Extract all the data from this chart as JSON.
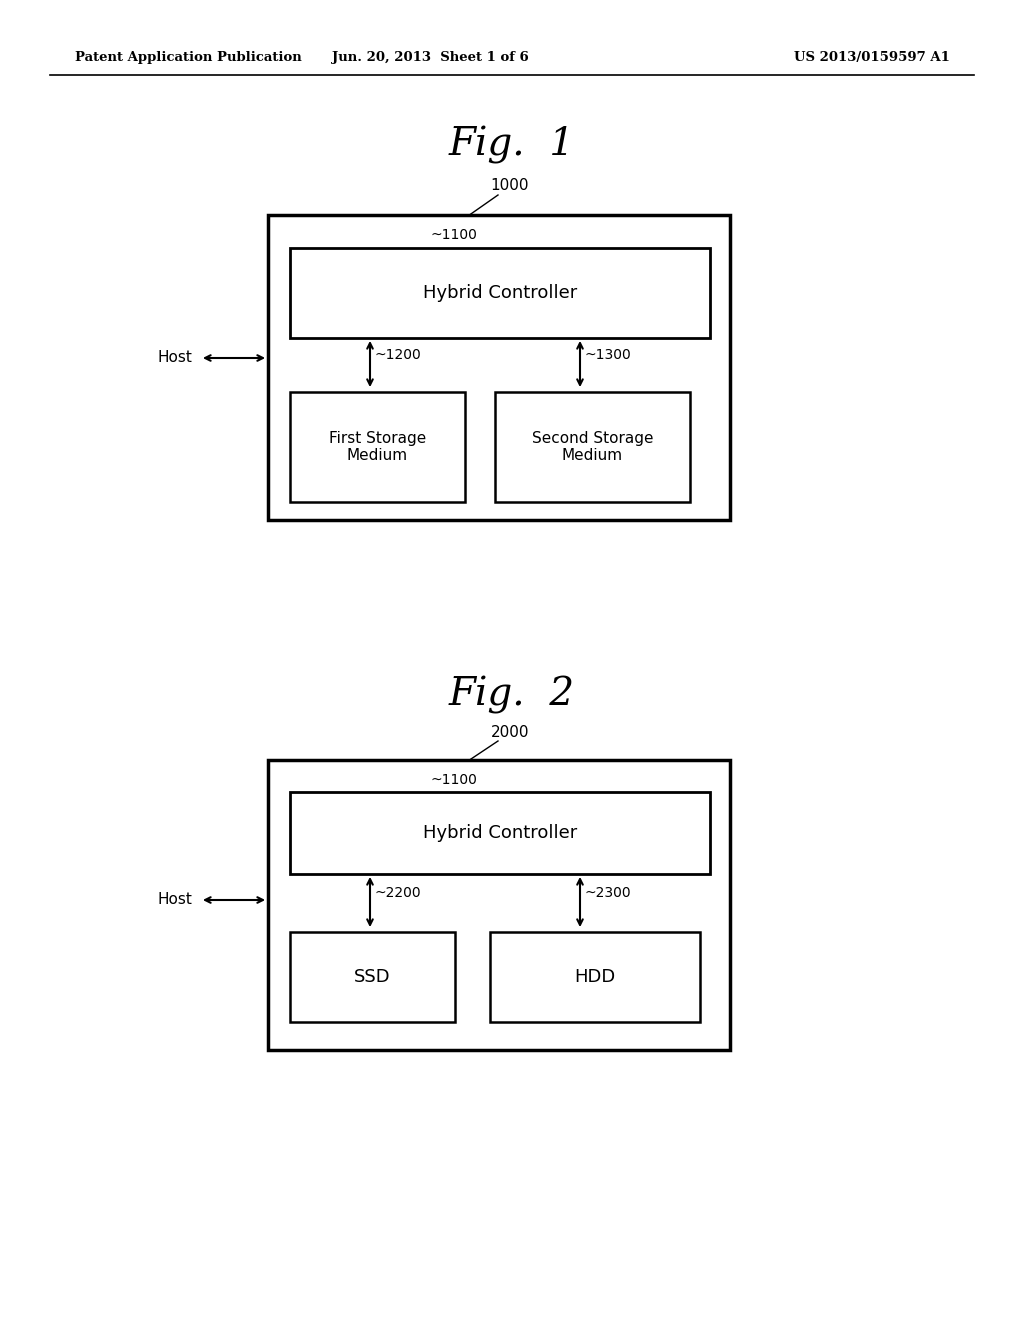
{
  "bg_color": "#ffffff",
  "header_left": "Patent Application Publication",
  "header_mid": "Jun. 20, 2013  Sheet 1 of 6",
  "header_right": "US 2013/0159597 A1",
  "fig1_title": "Fig.  1",
  "fig2_title": "Fig.  2",
  "fig1": {
    "controller_text": "Hybrid Controller",
    "storage1_text": "First Storage\nMedium",
    "storage2_text": "Second Storage\nMedium",
    "outer_label": "1000",
    "inner_label": "~1100",
    "storage1_label": "~1200",
    "storage2_label": "~1300",
    "host_label": "Host"
  },
  "fig2": {
    "controller_text": "Hybrid Controller",
    "ssd_text": "SSD",
    "hdd_text": "HDD",
    "outer_label": "2000",
    "inner_label": "~1100",
    "ssd_label": "~2200",
    "hdd_label": "~2300",
    "host_label": "Host"
  }
}
